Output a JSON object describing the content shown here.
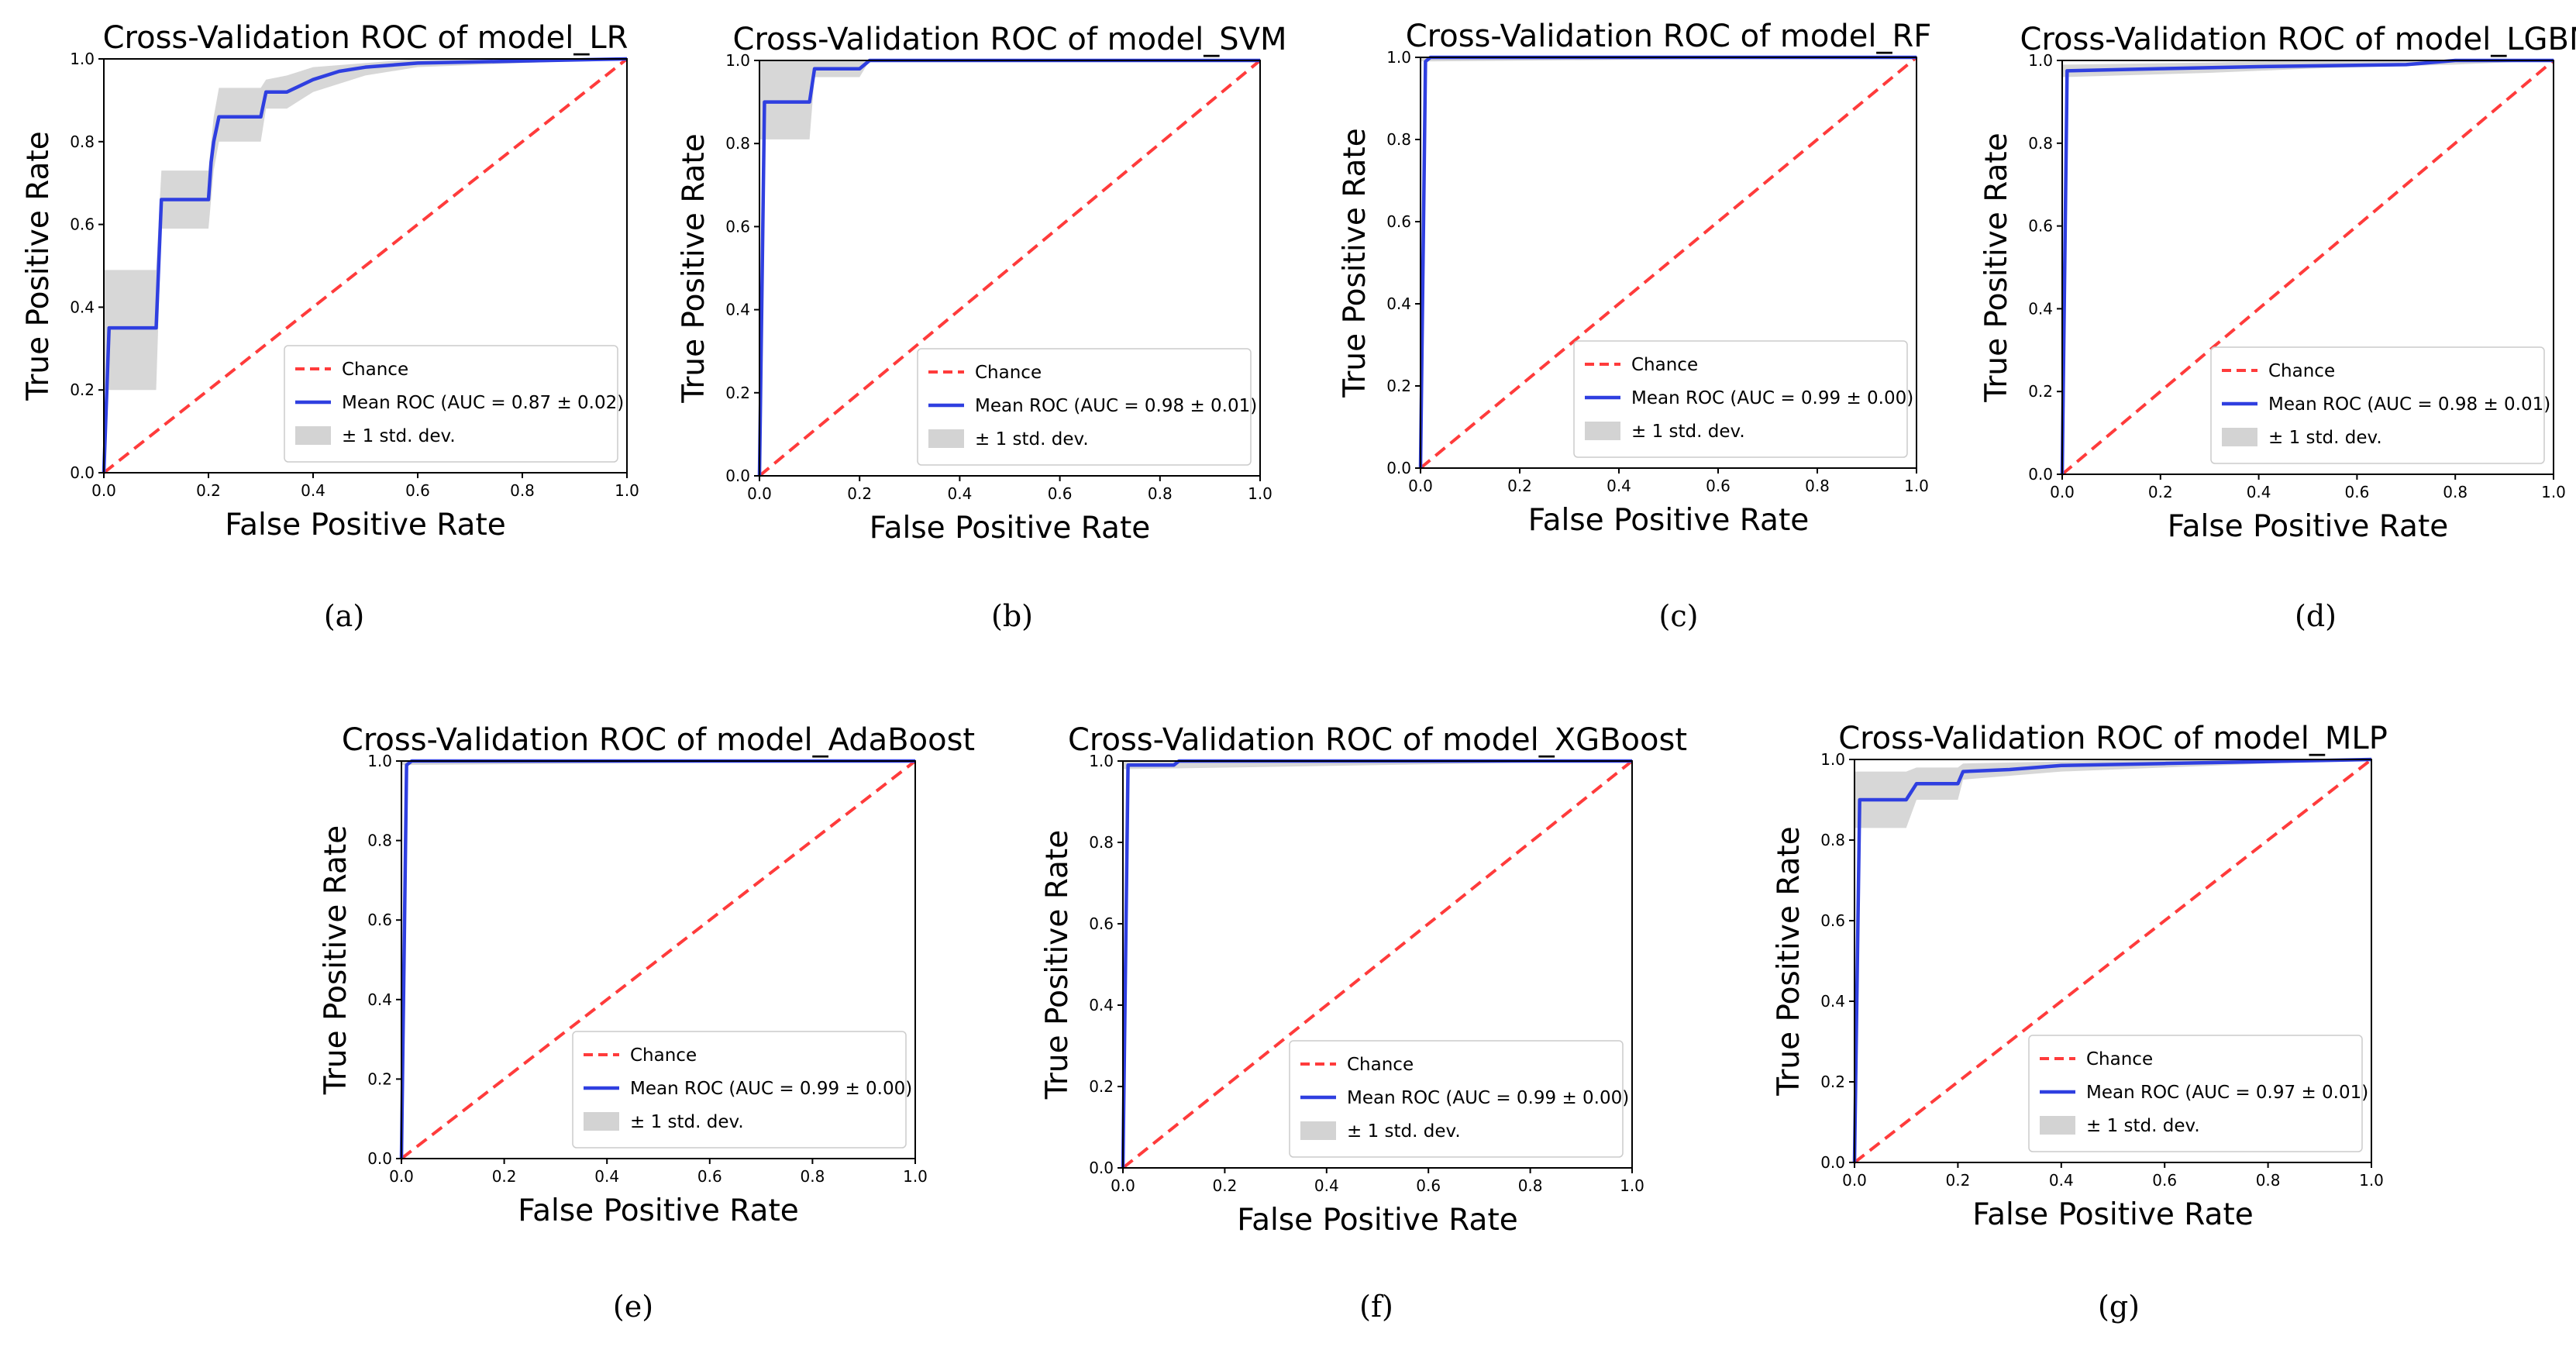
{
  "chart_data": [
    {
      "type": "line",
      "title": "Cross-Validation ROC of model_LR",
      "xlabel": "False Positive Rate",
      "ylabel": "True Positive Rate",
      "xlim": [
        0,
        1
      ],
      "ylim": [
        0,
        1
      ],
      "xticks": [
        "0.0",
        "0.2",
        "0.4",
        "0.6",
        "0.8",
        "1.0"
      ],
      "yticks": [
        "0.0",
        "0.2",
        "0.4",
        "0.6",
        "0.8",
        "1.0"
      ],
      "legend_position": "lower-right",
      "caption": "(a)",
      "legend": [
        "Chance",
        "Mean ROC (AUC = 0.87 ± 0.02)",
        "± 1 std. dev."
      ],
      "series": [
        {
          "name": "Chance",
          "style": "dashed",
          "color": "#ff3b3b",
          "x": [
            0,
            1
          ],
          "y": [
            0,
            1
          ]
        },
        {
          "name": "Mean ROC (AUC = 0.87 ± 0.02)",
          "color": "#2f3fe0",
          "x": [
            0,
            0.01,
            0.1,
            0.11,
            0.2,
            0.205,
            0.21,
            0.22,
            0.3,
            0.31,
            0.35,
            0.4,
            0.45,
            0.5,
            0.6,
            1.0
          ],
          "y": [
            0,
            0.35,
            0.35,
            0.66,
            0.66,
            0.75,
            0.8,
            0.86,
            0.86,
            0.92,
            0.92,
            0.95,
            0.97,
            0.98,
            0.99,
            1.0
          ]
        },
        {
          "name": "± 1 std. dev.",
          "type": "band",
          "color": "#d3d3d3",
          "x": [
            0,
            0.01,
            0.1,
            0.11,
            0.2,
            0.21,
            0.22,
            0.3,
            0.31,
            0.35,
            0.4,
            0.5,
            0.6,
            1.0
          ],
          "upper": [
            0.49,
            0.49,
            0.49,
            0.73,
            0.73,
            0.86,
            0.93,
            0.93,
            0.95,
            0.96,
            0.98,
            0.99,
            1.0,
            1.0
          ],
          "lower": [
            0.2,
            0.2,
            0.2,
            0.59,
            0.59,
            0.73,
            0.8,
            0.8,
            0.88,
            0.88,
            0.92,
            0.96,
            0.98,
            1.0
          ]
        }
      ]
    },
    {
      "type": "line",
      "title": "Cross-Validation ROC of model_SVM",
      "xlabel": "False Positive Rate",
      "ylabel": "True Positive Rate",
      "xlim": [
        0,
        1
      ],
      "ylim": [
        0,
        1
      ],
      "xticks": [
        "0.0",
        "0.2",
        "0.4",
        "0.6",
        "0.8",
        "1.0"
      ],
      "yticks": [
        "0.0",
        "0.2",
        "0.4",
        "0.6",
        "0.8",
        "1.0"
      ],
      "legend_position": "lower-right",
      "caption": "(b)",
      "legend": [
        "Chance",
        "Mean ROC (AUC = 0.98 ± 0.01)",
        "± 1 std. dev."
      ],
      "series": [
        {
          "name": "Chance",
          "style": "dashed",
          "color": "#ff3b3b",
          "x": [
            0,
            1
          ],
          "y": [
            0,
            1
          ]
        },
        {
          "name": "Mean ROC (AUC = 0.98 ± 0.01)",
          "color": "#2f3fe0",
          "x": [
            0,
            0.01,
            0.1,
            0.11,
            0.2,
            0.22,
            1.0
          ],
          "y": [
            0,
            0.9,
            0.9,
            0.98,
            0.98,
            1.0,
            1.0
          ]
        },
        {
          "name": "± 1 std. dev.",
          "type": "band",
          "color": "#d3d3d3",
          "x": [
            0,
            0.01,
            0.1,
            0.11,
            0.2,
            0.22,
            1.0
          ],
          "upper": [
            1.0,
            1.0,
            1.0,
            1.0,
            1.0,
            1.0,
            1.0
          ],
          "lower": [
            0.81,
            0.81,
            0.81,
            0.96,
            0.96,
            1.0,
            1.0
          ]
        }
      ]
    },
    {
      "type": "line",
      "title": "Cross-Validation ROC of model_RF",
      "xlabel": "False Positive Rate",
      "ylabel": "True Positive Rate",
      "xlim": [
        0,
        1
      ],
      "ylim": [
        0,
        1
      ],
      "xticks": [
        "0.0",
        "0.2",
        "0.4",
        "0.6",
        "0.8",
        "1.0"
      ],
      "yticks": [
        "0.0",
        "0.2",
        "0.4",
        "0.6",
        "0.8",
        "1.0"
      ],
      "legend_position": "lower-right",
      "caption": "(c)",
      "legend": [
        "Chance",
        "Mean ROC (AUC = 0.99 ± 0.00)",
        "± 1 std. dev."
      ],
      "series": [
        {
          "name": "Chance",
          "style": "dashed",
          "color": "#ff3b3b",
          "x": [
            0,
            1
          ],
          "y": [
            0,
            1
          ]
        },
        {
          "name": "Mean ROC (AUC = 0.99 ± 0.00)",
          "color": "#2f3fe0",
          "x": [
            0,
            0.01,
            0.02,
            1.0
          ],
          "y": [
            0,
            0.99,
            1.0,
            1.0
          ]
        },
        {
          "name": "± 1 std. dev.",
          "type": "band",
          "color": "#d3d3d3",
          "x": [
            0,
            0.01,
            1.0
          ],
          "upper": [
            1.0,
            1.0,
            1.0
          ],
          "lower": [
            0.99,
            0.99,
            1.0
          ]
        }
      ]
    },
    {
      "type": "line",
      "title": "Cross-Validation ROC of model_LGBM",
      "xlabel": "False Positive Rate",
      "ylabel": "True Positive Rate",
      "xlim": [
        0,
        1
      ],
      "ylim": [
        0,
        1
      ],
      "xticks": [
        "0.0",
        "0.2",
        "0.4",
        "0.6",
        "0.8",
        "1.0"
      ],
      "yticks": [
        "0.0",
        "0.2",
        "0.4",
        "0.6",
        "0.8",
        "1.0"
      ],
      "legend_position": "lower-right",
      "caption": "(d)",
      "legend": [
        "Chance",
        "Mean ROC (AUC = 0.98 ± 0.01)",
        "± 1 std. dev."
      ],
      "series": [
        {
          "name": "Chance",
          "style": "dashed",
          "color": "#ff3b3b",
          "x": [
            0,
            1
          ],
          "y": [
            0,
            1
          ]
        },
        {
          "name": "Mean ROC (AUC = 0.98 ± 0.01)",
          "color": "#2f3fe0",
          "x": [
            0,
            0.01,
            0.2,
            0.4,
            0.7,
            0.8,
            1.0
          ],
          "y": [
            0,
            0.975,
            0.98,
            0.985,
            0.99,
            1.0,
            1.0
          ]
        },
        {
          "name": "± 1 std. dev.",
          "type": "band",
          "color": "#d3d3d3",
          "x": [
            0,
            0.01,
            0.3,
            0.5,
            0.8,
            1.0
          ],
          "upper": [
            0.99,
            0.99,
            0.995,
            1.0,
            1.0,
            1.0
          ],
          "lower": [
            0.96,
            0.96,
            0.97,
            0.98,
            0.99,
            1.0
          ]
        }
      ]
    },
    {
      "type": "line",
      "title": "Cross-Validation ROC of model_AdaBoost",
      "xlabel": "False Positive Rate",
      "ylabel": "True Positive Rate",
      "xlim": [
        0,
        1
      ],
      "ylim": [
        0,
        1
      ],
      "xticks": [
        "0.0",
        "0.2",
        "0.4",
        "0.6",
        "0.8",
        "1.0"
      ],
      "yticks": [
        "0.0",
        "0.2",
        "0.4",
        "0.6",
        "0.8",
        "1.0"
      ],
      "legend_position": "lower-right",
      "caption": "(e)",
      "legend": [
        "Chance",
        "Mean ROC (AUC = 0.99 ± 0.00)",
        "± 1 std. dev."
      ],
      "series": [
        {
          "name": "Chance",
          "style": "dashed",
          "color": "#ff3b3b",
          "x": [
            0,
            1
          ],
          "y": [
            0,
            1
          ]
        },
        {
          "name": "Mean ROC (AUC = 0.99 ± 0.00)",
          "color": "#2f3fe0",
          "x": [
            0,
            0.01,
            0.02,
            1.0
          ],
          "y": [
            0,
            0.99,
            1.0,
            1.0
          ]
        },
        {
          "name": "± 1 std. dev.",
          "type": "band",
          "color": "#d3d3d3",
          "x": [
            0,
            0.01,
            1.0
          ],
          "upper": [
            1.0,
            1.0,
            1.0
          ],
          "lower": [
            0.99,
            0.99,
            1.0
          ]
        }
      ]
    },
    {
      "type": "line",
      "title": "Cross-Validation ROC of model_XGBoost",
      "xlabel": "False Positive Rate",
      "ylabel": "True Positive Rate",
      "xlim": [
        0,
        1
      ],
      "ylim": [
        0,
        1
      ],
      "xticks": [
        "0.0",
        "0.2",
        "0.4",
        "0.6",
        "0.8",
        "1.0"
      ],
      "yticks": [
        "0.0",
        "0.2",
        "0.4",
        "0.6",
        "0.8",
        "1.0"
      ],
      "legend_position": "lower-right",
      "caption": "(f)",
      "legend": [
        "Chance",
        "Mean ROC (AUC = 0.99 ± 0.00)",
        "± 1 std. dev."
      ],
      "series": [
        {
          "name": "Chance",
          "style": "dashed",
          "color": "#ff3b3b",
          "x": [
            0,
            1
          ],
          "y": [
            0,
            1
          ]
        },
        {
          "name": "Mean ROC (AUC = 0.99 ± 0.00)",
          "color": "#2f3fe0",
          "x": [
            0,
            0.01,
            0.1,
            0.11,
            1.0
          ],
          "y": [
            0,
            0.99,
            0.99,
            1.0,
            1.0
          ]
        },
        {
          "name": "± 1 std. dev.",
          "type": "band",
          "color": "#d3d3d3",
          "x": [
            0,
            0.01,
            1.0
          ],
          "upper": [
            1.0,
            1.0,
            1.0
          ],
          "lower": [
            0.98,
            0.98,
            1.0
          ]
        }
      ]
    },
    {
      "type": "line",
      "title": "Cross-Validation ROC of model_MLP",
      "xlabel": "False Positive Rate",
      "ylabel": "True Positive Rate",
      "xlim": [
        0,
        1
      ],
      "ylim": [
        0,
        1
      ],
      "xticks": [
        "0.0",
        "0.2",
        "0.4",
        "0.6",
        "0.8",
        "1.0"
      ],
      "yticks": [
        "0.0",
        "0.2",
        "0.4",
        "0.6",
        "0.8",
        "1.0"
      ],
      "legend_position": "lower-right",
      "caption": "(g)",
      "legend": [
        "Chance",
        "Mean ROC (AUC = 0.97 ± 0.01)",
        "± 1 std. dev."
      ],
      "series": [
        {
          "name": "Chance",
          "style": "dashed",
          "color": "#ff3b3b",
          "x": [
            0,
            1
          ],
          "y": [
            0,
            1
          ]
        },
        {
          "name": "Mean ROC (AUC = 0.97 ± 0.01)",
          "color": "#2f3fe0",
          "x": [
            0,
            0.01,
            0.1,
            0.12,
            0.2,
            0.21,
            0.3,
            0.4,
            0.6,
            0.8,
            1.0
          ],
          "y": [
            0,
            0.9,
            0.9,
            0.94,
            0.94,
            0.97,
            0.975,
            0.985,
            0.99,
            0.995,
            1.0
          ]
        },
        {
          "name": "± 1 std. dev.",
          "type": "band",
          "color": "#d3d3d3",
          "x": [
            0,
            0.01,
            0.1,
            0.12,
            0.2,
            0.21,
            0.4,
            0.6,
            1.0
          ],
          "upper": [
            0.97,
            0.97,
            0.97,
            0.98,
            0.98,
            0.99,
            0.995,
            1.0,
            1.0
          ],
          "lower": [
            0.83,
            0.83,
            0.83,
            0.9,
            0.9,
            0.95,
            0.97,
            0.98,
            1.0
          ]
        }
      ]
    }
  ]
}
